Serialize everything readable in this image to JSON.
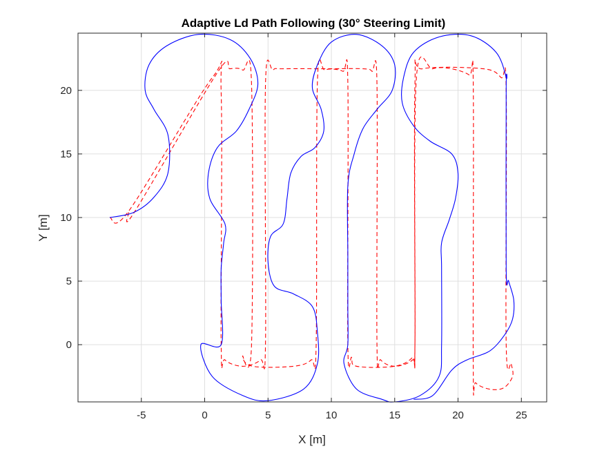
{
  "chart_data": {
    "type": "line",
    "title": "Adaptive Ld Path Following (30° Steering Limit)",
    "xlabel": "X [m]",
    "ylabel": "Y [m]",
    "xlim": [
      -10,
      27
    ],
    "ylim": [
      -4.5,
      24.5
    ],
    "xticks": [
      -5,
      0,
      5,
      10,
      15,
      20,
      25
    ],
    "yticks": [
      0,
      5,
      10,
      15,
      20
    ],
    "grid": true,
    "series": [
      {
        "color": "#ff0000",
        "style": "dashed",
        "values": [
          [
            -7.5,
            10
          ],
          [
            -6.0,
            10.5
          ],
          [
            0.6,
            21.0
          ],
          [
            1.3,
            19.8
          ],
          [
            1.3,
            0
          ],
          [
            1.6,
            -1.2
          ],
          [
            3.0,
            -1.7
          ],
          [
            4.4,
            -1.2
          ],
          [
            4.8,
            0
          ],
          [
            4.8,
            20.5
          ],
          [
            5.4,
            21.6
          ],
          [
            6.2,
            21.7
          ],
          [
            10.0,
            21.7
          ],
          [
            12.5,
            21.7
          ],
          [
            13.2,
            21.5
          ],
          [
            13.6,
            20.5
          ],
          [
            13.6,
            0
          ],
          [
            13.9,
            -1.2
          ],
          [
            15.0,
            -1.7
          ],
          [
            16.4,
            -1.2
          ],
          [
            16.6,
            0
          ],
          [
            16.6,
            20.5
          ],
          [
            17.2,
            21.7
          ],
          [
            22.0,
            21.7
          ],
          [
            23.4,
            21.0
          ],
          [
            23.8,
            20.0
          ],
          [
            23.8,
            0
          ],
          [
            24.2,
            -1.5
          ],
          [
            24.3,
            -2.5
          ],
          [
            23.6,
            -3.4
          ],
          [
            22.5,
            -3.5
          ],
          [
            21.4,
            -3.0
          ],
          [
            21.2,
            -2.0
          ],
          [
            21.2,
            20.5
          ],
          [
            20.9,
            21.2
          ],
          [
            19.5,
            21.7
          ],
          [
            18.0,
            21.7
          ],
          [
            16.7,
            20.8
          ],
          [
            16.6,
            0
          ],
          [
            16.4,
            -1.0
          ],
          [
            15.0,
            -1.7
          ],
          [
            12.0,
            -1.7
          ],
          [
            11.6,
            -1.0
          ],
          [
            11.3,
            0
          ],
          [
            11.3,
            20.6
          ],
          [
            10.9,
            21.5
          ],
          [
            9.5,
            21.6
          ],
          [
            8.9,
            20.6
          ],
          [
            8.8,
            0
          ],
          [
            8.4,
            -1.2
          ],
          [
            7.0,
            -1.7
          ],
          [
            3.8,
            -1.7
          ],
          [
            3.0,
            -0.9
          ],
          [
            3.7,
            0
          ],
          [
            3.7,
            20.5
          ],
          [
            3.0,
            21.6
          ],
          [
            2.0,
            21.7
          ],
          [
            1.0,
            21.4
          ],
          [
            -5.5,
            10.5
          ],
          [
            -6.0,
            10.4
          ]
        ]
      },
      {
        "color": "#0000ff",
        "style": "solid",
        "values": [
          [
            -7.5,
            10
          ],
          [
            -5.6,
            10.4
          ],
          [
            -4.0,
            11.6
          ],
          [
            -2.9,
            13.5
          ],
          [
            -2.9,
            16.5
          ],
          [
            -4.0,
            18.5
          ],
          [
            -4.7,
            20.0
          ],
          [
            -4.4,
            22.0
          ],
          [
            -3.0,
            23.5
          ],
          [
            -0.5,
            24.4
          ],
          [
            2.0,
            24.0
          ],
          [
            3.6,
            22.5
          ],
          [
            4.2,
            20.5
          ],
          [
            3.5,
            18.5
          ],
          [
            2.5,
            16.8
          ],
          [
            1.0,
            15.5
          ],
          [
            0.3,
            13.5
          ],
          [
            0.4,
            11.5
          ],
          [
            1.6,
            9.5
          ],
          [
            1.5,
            8.0
          ],
          [
            1.3,
            6.0
          ],
          [
            1.3,
            3.5
          ],
          [
            1.3,
            0
          ],
          [
            -0.3,
            0
          ],
          [
            0.6,
            -2.5
          ],
          [
            3.0,
            -4.0
          ],
          [
            5.0,
            -4.4
          ],
          [
            7.8,
            -3.5
          ],
          [
            8.9,
            -1.5
          ],
          [
            8.9,
            1.0
          ],
          [
            8.5,
            3.0
          ],
          [
            7.0,
            4.0
          ],
          [
            5.5,
            4.6
          ],
          [
            5.0,
            6.5
          ],
          [
            5.2,
            8.5
          ],
          [
            6.2,
            9.5
          ],
          [
            6.5,
            11.5
          ],
          [
            6.8,
            13.5
          ],
          [
            7.6,
            14.8
          ],
          [
            8.7,
            15.5
          ],
          [
            9.4,
            16.8
          ],
          [
            9.2,
            18.5
          ],
          [
            8.5,
            20.2
          ],
          [
            8.9,
            22.0
          ],
          [
            10.0,
            23.8
          ],
          [
            12.0,
            24.4
          ],
          [
            14.0,
            23.5
          ],
          [
            15.0,
            22.0
          ],
          [
            14.8,
            20.0
          ],
          [
            13.6,
            18.5
          ],
          [
            12.5,
            17.0
          ],
          [
            11.8,
            15.0
          ],
          [
            11.3,
            12.5
          ],
          [
            11.3,
            7.0
          ],
          [
            11.3,
            3.0
          ],
          [
            11.3,
            0
          ],
          [
            11.0,
            -1.5
          ],
          [
            12.0,
            -3.5
          ],
          [
            14.0,
            -4.3
          ],
          [
            15.0,
            -4.5
          ],
          [
            17.0,
            -4.0
          ],
          [
            18.5,
            -2.5
          ],
          [
            18.7,
            0
          ],
          [
            18.7,
            6.0
          ],
          [
            18.7,
            8.0
          ],
          [
            19.3,
            9.8
          ],
          [
            19.8,
            11.5
          ],
          [
            20.0,
            13.5
          ],
          [
            19.5,
            15.0
          ],
          [
            17.8,
            16.0
          ],
          [
            16.5,
            17.2
          ],
          [
            15.6,
            19.0
          ],
          [
            15.7,
            21.0
          ],
          [
            16.5,
            23.0
          ],
          [
            18.5,
            24.2
          ],
          [
            21.0,
            24.3
          ],
          [
            23.0,
            23.0
          ],
          [
            23.8,
            21.0
          ],
          [
            23.8,
            20.0
          ],
          [
            23.8,
            6.0
          ],
          [
            24.0,
            5.0
          ],
          [
            24.4,
            3.5
          ],
          [
            24.3,
            2.0
          ],
          [
            23.7,
            0.8
          ],
          [
            22.5,
            -0.5
          ],
          [
            20.7,
            -1.2
          ],
          [
            19.5,
            -2.0
          ],
          [
            18.0,
            -4.0
          ],
          [
            16.5,
            -4.3
          ]
        ]
      }
    ]
  }
}
